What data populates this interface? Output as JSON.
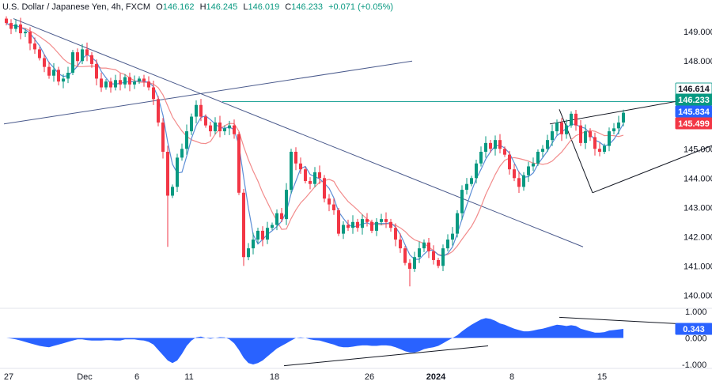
{
  "header": {
    "symbol": "U.S. Dollar / Japanese Yen, 4h, FXCM",
    "open_label": "O",
    "open": "146.162",
    "high_label": "H",
    "high": "146.245",
    "low_label": "L",
    "low": "146.019",
    "close_label": "C",
    "close": "146.233",
    "change": "+0.071 (+0.05%)"
  },
  "chart_data": {
    "type": "candlestick",
    "price_axis": {
      "ticks": [
        "149.000",
        "148.000",
        "147.000",
        "146.000",
        "145.000",
        "144.000",
        "143.000",
        "142.000",
        "141.000",
        "140.000"
      ],
      "tick_values": [
        149,
        148,
        147,
        146,
        145,
        144,
        143,
        142,
        141,
        140
      ],
      "range": [
        139.55,
        149.6
      ]
    },
    "price_badges": [
      {
        "label": "146.614",
        "value": 146.614,
        "color": "#ffffff",
        "text_color": "#131722",
        "border": "#26a69a"
      },
      {
        "label": "146.233",
        "value": 146.233,
        "color": "#089981",
        "text_color": "#ffffff"
      },
      {
        "label": "145.834",
        "value": 145.834,
        "color": "#2962ff",
        "text_color": "#ffffff"
      },
      {
        "label": "145.499",
        "value": 145.499,
        "color": "#f23645",
        "text_color": "#ffffff"
      }
    ],
    "oscillator_axis": {
      "ticks": [
        "1.000",
        "0.000",
        "-1.000"
      ],
      "tick_values": [
        1,
        0,
        -1
      ],
      "range": [
        -1.15,
        1.12
      ]
    },
    "oscillator_badge": {
      "label": "0.343",
      "value": 0.343,
      "color": "#2962ff"
    },
    "x_axis": {
      "labels": [
        {
          "text": "27",
          "bar": 1,
          "bold": false
        },
        {
          "text": "Dec",
          "bar": 17,
          "bold": false
        },
        {
          "text": "6",
          "bar": 28,
          "bold": false
        },
        {
          "text": "11",
          "bar": 39,
          "bold": false
        },
        {
          "text": "18",
          "bar": 57,
          "bold": false
        },
        {
          "text": "26",
          "bar": 77,
          "bold": false
        },
        {
          "text": "2024",
          "bar": 91,
          "bold": true
        },
        {
          "text": "8",
          "bar": 107,
          "bold": false
        },
        {
          "text": "15",
          "bar": 126,
          "bold": false
        }
      ],
      "bar_count": 131
    },
    "closes": [
      149.3,
      149.1,
      149.25,
      148.95,
      149.0,
      148.6,
      148.4,
      148.1,
      147.8,
      147.5,
      147.7,
      147.3,
      147.4,
      147.6,
      148.3,
      148.0,
      148.4,
      148.2,
      147.9,
      147.4,
      147.1,
      147.3,
      147.1,
      147.35,
      147.2,
      147.45,
      147.2,
      147.3,
      147.4,
      147.3,
      147.1,
      146.7,
      145.9,
      144.9,
      143.4,
      143.7,
      144.7,
      145.0,
      145.6,
      146.1,
      146.5,
      146.1,
      145.8,
      145.6,
      145.9,
      145.6,
      145.7,
      145.8,
      145.5,
      143.5,
      141.3,
      141.6,
      141.9,
      142.2,
      141.9,
      142.3,
      142.4,
      142.8,
      142.6,
      143.6,
      144.9,
      144.5,
      144.3,
      143.9,
      143.8,
      144.2,
      144.0,
      143.3,
      143.1,
      142.9,
      142.1,
      142.4,
      142.3,
      142.5,
      142.3,
      142.6,
      142.5,
      142.2,
      142.5,
      142.6,
      142.5,
      142.3,
      141.9,
      141.6,
      141.1,
      140.9,
      141.3,
      141.6,
      141.8,
      141.5,
      141.2,
      141.0,
      141.6,
      141.9,
      142.1,
      142.8,
      143.6,
      143.8,
      144.0,
      144.5,
      144.9,
      145.2,
      145.0,
      145.3,
      145.0,
      144.8,
      144.3,
      144.0,
      143.7,
      144.1,
      144.4,
      144.5,
      144.9,
      145.0,
      145.3,
      145.6,
      145.9,
      145.5,
      145.8,
      146.2,
      145.8,
      145.2,
      145.6,
      145.4,
      145.0,
      144.9,
      145.1,
      145.6,
      145.7,
      145.9,
      146.233
    ],
    "oscillator": [
      0.0,
      -0.02,
      -0.05,
      -0.1,
      -0.15,
      -0.2,
      -0.25,
      -0.3,
      -0.33,
      -0.35,
      -0.3,
      -0.25,
      -0.2,
      -0.15,
      -0.1,
      -0.05,
      -0.05,
      -0.08,
      -0.1,
      -0.1,
      -0.1,
      -0.08,
      -0.08,
      -0.1,
      -0.1,
      -0.05,
      -0.05,
      -0.05,
      -0.08,
      -0.1,
      -0.15,
      -0.25,
      -0.45,
      -0.65,
      -0.85,
      -0.95,
      -0.85,
      -0.6,
      -0.3,
      -0.1,
      0.02,
      0.05,
      0.0,
      -0.03,
      0.0,
      0.03,
      0.02,
      -0.05,
      -0.2,
      -0.45,
      -0.75,
      -0.95,
      -1.0,
      -0.95,
      -0.85,
      -0.7,
      -0.55,
      -0.4,
      -0.3,
      -0.2,
      -0.1,
      0.0,
      0.02,
      0.0,
      -0.05,
      -0.08,
      -0.1,
      -0.15,
      -0.2,
      -0.25,
      -0.32,
      -0.35,
      -0.35,
      -0.33,
      -0.3,
      -0.28,
      -0.28,
      -0.3,
      -0.3,
      -0.28,
      -0.28,
      -0.3,
      -0.35,
      -0.42,
      -0.5,
      -0.55,
      -0.55,
      -0.5,
      -0.42,
      -0.38,
      -0.35,
      -0.3,
      -0.2,
      -0.1,
      0.0,
      0.1,
      0.25,
      0.38,
      0.5,
      0.6,
      0.7,
      0.75,
      0.72,
      0.65,
      0.55,
      0.5,
      0.42,
      0.35,
      0.3,
      0.25,
      0.25,
      0.28,
      0.32,
      0.35,
      0.4,
      0.45,
      0.5,
      0.48,
      0.45,
      0.48,
      0.45,
      0.35,
      0.3,
      0.25,
      0.2,
      0.2,
      0.22,
      0.28,
      0.3,
      0.32,
      0.343
    ],
    "colors": {
      "up": "#089981",
      "down": "#f23645",
      "ma_fast": "#5b8dd6",
      "ma_slow": "#f28b8b",
      "oscillator_fill": "#2962ff",
      "trendline": "#4a5a8c",
      "channel": "#131722",
      "resistance": "#26a69a"
    },
    "annotations": [
      {
        "type": "trendline",
        "from": [
          0,
          145.85
        ],
        "to": [
          86,
          148.0
        ]
      },
      {
        "type": "trendline",
        "from": [
          2,
          149.45
        ],
        "to": [
          122,
          141.65
        ]
      },
      {
        "type": "horizontal",
        "value": 146.614,
        "from": 46
      },
      {
        "type": "channel_line",
        "from": [
          115,
          145.85
        ],
        "to": [
          153,
          146.95
        ]
      },
      {
        "type": "channel_line",
        "from": [
          124,
          143.5
        ],
        "to": [
          156,
          145.55
        ]
      },
      {
        "type": "channel_line",
        "from": [
          117,
          146.35
        ],
        "to": [
          124,
          143.5
        ]
      },
      {
        "type": "osc_line",
        "from": [
          59,
          -1.05
        ],
        "to": [
          102,
          -0.3
        ]
      },
      {
        "type": "osc_line",
        "from": [
          117,
          0.78
        ],
        "to": [
          144,
          0.52
        ]
      }
    ]
  }
}
